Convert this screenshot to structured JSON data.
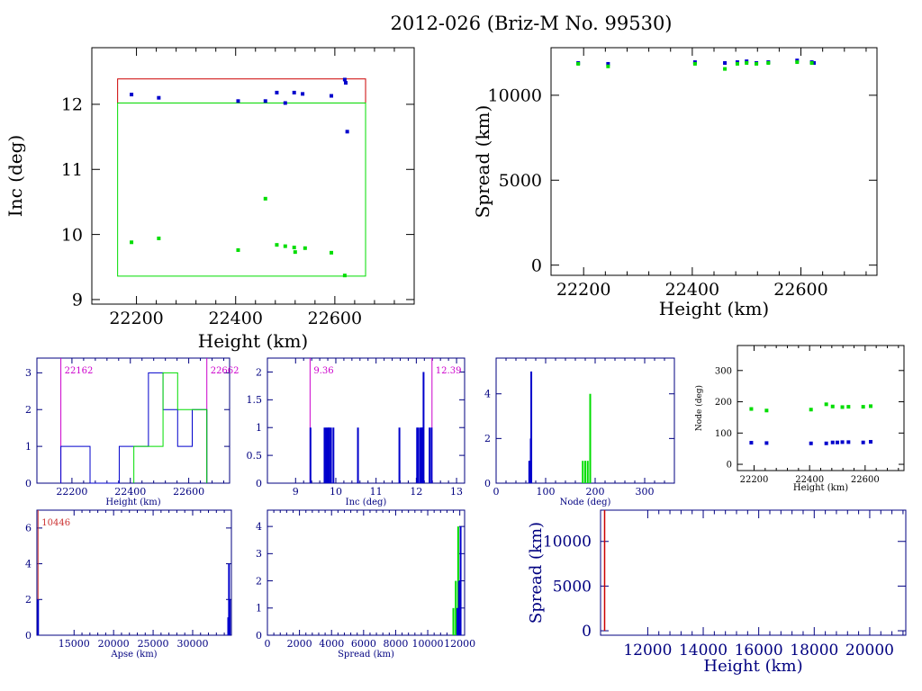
{
  "title": "2012-026 (Briz-M No. 99530)",
  "colors": {
    "frame": "#000000",
    "blue": "#0000cc",
    "green": "#00dd00",
    "red": "#cc0000",
    "magenta": "#cc00cc",
    "axis_blue": "#000080",
    "marker_red": "#cc3333"
  },
  "chart_data": [
    {
      "id": "inc-vs-height",
      "type": "scatter",
      "xlabel": "Height (km)",
      "ylabel": "Inc (deg)",
      "xlim": [
        22110,
        22760
      ],
      "ylim": [
        8.93,
        12.87
      ],
      "xticks": [
        22200,
        22400,
        22600
      ],
      "yticks": [
        9,
        10,
        11,
        12
      ],
      "boxes": [
        {
          "color": "red",
          "x": [
            22162,
            22662
          ],
          "y": [
            12.02,
            12.39
          ]
        },
        {
          "color": "green",
          "x": [
            22162,
            22662
          ],
          "y": [
            9.36,
            12.02
          ]
        }
      ],
      "series": [
        {
          "color": "blue",
          "x": [
            22190,
            22245,
            22405,
            22460,
            22483,
            22500,
            22518,
            22535,
            22593,
            22620,
            22622,
            22625
          ],
          "y": [
            12.15,
            12.1,
            12.05,
            12.05,
            12.18,
            12.02,
            12.18,
            12.16,
            12.13,
            12.38,
            12.33,
            11.58
          ]
        },
        {
          "color": "green",
          "x": [
            22190,
            22245,
            22405,
            22460,
            22483,
            22500,
            22518,
            22520,
            22540,
            22593,
            22620
          ],
          "y": [
            9.88,
            9.94,
            9.76,
            10.55,
            9.84,
            9.82,
            9.8,
            9.73,
            9.79,
            9.72,
            9.37
          ]
        }
      ]
    },
    {
      "id": "spread-vs-height",
      "type": "scatter",
      "xlabel": "Height (km)",
      "ylabel": "Spread (km)",
      "xlim": [
        22140,
        22740
      ],
      "ylim": [
        -600,
        12800
      ],
      "xticks": [
        22200,
        22400,
        22600
      ],
      "yticks": [
        0,
        5000,
        10000
      ],
      "series": [
        {
          "color": "blue",
          "x": [
            22190,
            22245,
            22405,
            22460,
            22483,
            22500,
            22518,
            22540,
            22593,
            22620,
            22624
          ],
          "y": [
            11900,
            11850,
            11950,
            11900,
            11950,
            12000,
            11900,
            11950,
            12050,
            11950,
            11900
          ]
        },
        {
          "color": "green",
          "x": [
            22190,
            22245,
            22405,
            22460,
            22483,
            22500,
            22518,
            22540,
            22593,
            22620
          ],
          "y": [
            11850,
            11700,
            11850,
            11550,
            11850,
            11900,
            11850,
            11900,
            11950,
            11900
          ]
        }
      ]
    },
    {
      "id": "hist-height",
      "type": "bar",
      "xlabel": "Height (km)",
      "xlim": [
        22080,
        22740
      ],
      "ylim": [
        0,
        3.4
      ],
      "xticks": [
        22200,
        22400,
        22600
      ],
      "yticks": [
        0,
        1,
        2,
        3
      ],
      "markers": [
        {
          "x": 22162,
          "label": "22162"
        },
        {
          "x": 22662,
          "label": "22662"
        }
      ],
      "series": [
        {
          "color": "blue",
          "edges": [
            22162,
            22262,
            22362,
            22412,
            22462,
            22512,
            22562,
            22612,
            22662
          ],
          "counts": [
            1,
            0,
            1,
            1,
            3,
            2,
            1,
            2
          ]
        },
        {
          "color": "green",
          "edges": [
            22412,
            22462,
            22512,
            22562,
            22612,
            22662
          ],
          "counts": [
            1,
            1,
            3,
            2,
            2
          ]
        }
      ]
    },
    {
      "id": "hist-inc",
      "type": "bar",
      "xlabel": "Inc (deg)",
      "xlim": [
        8.3,
        13.2
      ],
      "ylim": [
        0,
        2.25
      ],
      "xticks": [
        9,
        10,
        11,
        12,
        13
      ],
      "yticks": [
        0,
        0.5,
        1,
        1.5,
        2
      ],
      "markers": [
        {
          "x": 9.36,
          "label": "9.36"
        },
        {
          "x": 12.39,
          "label": "12.39"
        }
      ],
      "series": [
        {
          "color": "blue",
          "x": [
            9.37,
            9.72,
            9.76,
            9.79,
            9.82,
            9.84,
            9.88,
            9.94,
            10.55,
            11.58,
            12.02,
            12.05,
            12.1,
            12.13,
            12.15,
            12.16,
            12.18,
            12.33,
            12.38
          ],
          "counts": [
            1,
            1,
            1,
            1,
            1,
            1,
            1,
            1,
            1,
            1,
            1,
            1,
            1,
            1,
            1,
            1,
            2,
            1,
            1
          ]
        }
      ]
    },
    {
      "id": "hist-node",
      "type": "bar",
      "xlabel": "Node (deg)",
      "xlim": [
        0,
        360
      ],
      "ylim": [
        0,
        5.6
      ],
      "xticks": [
        0,
        100,
        200,
        300
      ],
      "yticks": [
        0,
        2,
        4
      ],
      "series": [
        {
          "color": "blue",
          "x": [
            67,
            68,
            69,
            70,
            71
          ],
          "counts": [
            1,
            1,
            1,
            2,
            5
          ]
        },
        {
          "color": "green",
          "x": [
            175,
            180,
            185,
            190
          ],
          "counts": [
            1,
            1,
            1,
            4
          ]
        }
      ]
    },
    {
      "id": "node-vs-height",
      "type": "scatter",
      "xlabel": "Height (km)",
      "ylabel": "Node (deg)",
      "xlim": [
        22140,
        22740
      ],
      "ylim": [
        -20,
        380
      ],
      "xticks": [
        22200,
        22400,
        22600
      ],
      "yticks": [
        0,
        100,
        200,
        300
      ],
      "series": [
        {
          "color": "blue",
          "x": [
            22190,
            22245,
            22405,
            22460,
            22483,
            22500,
            22518,
            22540,
            22593,
            22620
          ],
          "y": [
            69,
            68,
            67,
            67,
            70,
            70,
            71,
            71,
            70,
            72
          ]
        },
        {
          "color": "green",
          "x": [
            22190,
            22245,
            22405,
            22460,
            22483,
            22518,
            22540,
            22593,
            22620
          ],
          "y": [
            177,
            172,
            175,
            192,
            185,
            183,
            184,
            184,
            186
          ]
        }
      ]
    },
    {
      "id": "hist-apse",
      "type": "bar",
      "xlabel": "Apse (km)",
      "xlim": [
        10300,
        34900
      ],
      "ylim": [
        0,
        7
      ],
      "xticks": [
        15000,
        20000,
        25000,
        30000
      ],
      "yticks": [
        0,
        2,
        4,
        6
      ],
      "markers": [
        {
          "x": 10446,
          "label": "10446"
        }
      ],
      "series": [
        {
          "color": "blue",
          "x": [
            10446,
            34500,
            34600,
            34700
          ],
          "counts": [
            2,
            1,
            4,
            2
          ]
        }
      ]
    },
    {
      "id": "hist-spread",
      "type": "bar",
      "xlabel": "Spread (km)",
      "xlim": [
        0,
        12300
      ],
      "ylim": [
        0,
        4.6
      ],
      "xticks": [
        0,
        2000,
        4000,
        6000,
        8000,
        10000,
        12000
      ],
      "yticks": [
        0,
        1,
        2,
        3,
        4
      ],
      "series": [
        {
          "color": "green",
          "x": [
            11600,
            11750,
            11900
          ],
          "counts": [
            1,
            2,
            4
          ]
        },
        {
          "color": "blue",
          "x": [
            11850,
            11950,
            12050
          ],
          "counts": [
            1,
            2,
            4
          ]
        }
      ]
    },
    {
      "id": "spread-vs-apse",
      "type": "line",
      "xlabel": "Height (km)",
      "ylabel": "Spread (km)",
      "xlim": [
        10300,
        21300
      ],
      "ylim": [
        -500,
        13500
      ],
      "xticks": [
        12000,
        14000,
        16000,
        18000,
        20000
      ],
      "yticks": [
        0,
        5000,
        10000
      ],
      "series": [
        {
          "color": "red",
          "x": [
            10446,
            10446
          ],
          "y": [
            0,
            13500
          ]
        }
      ]
    }
  ]
}
